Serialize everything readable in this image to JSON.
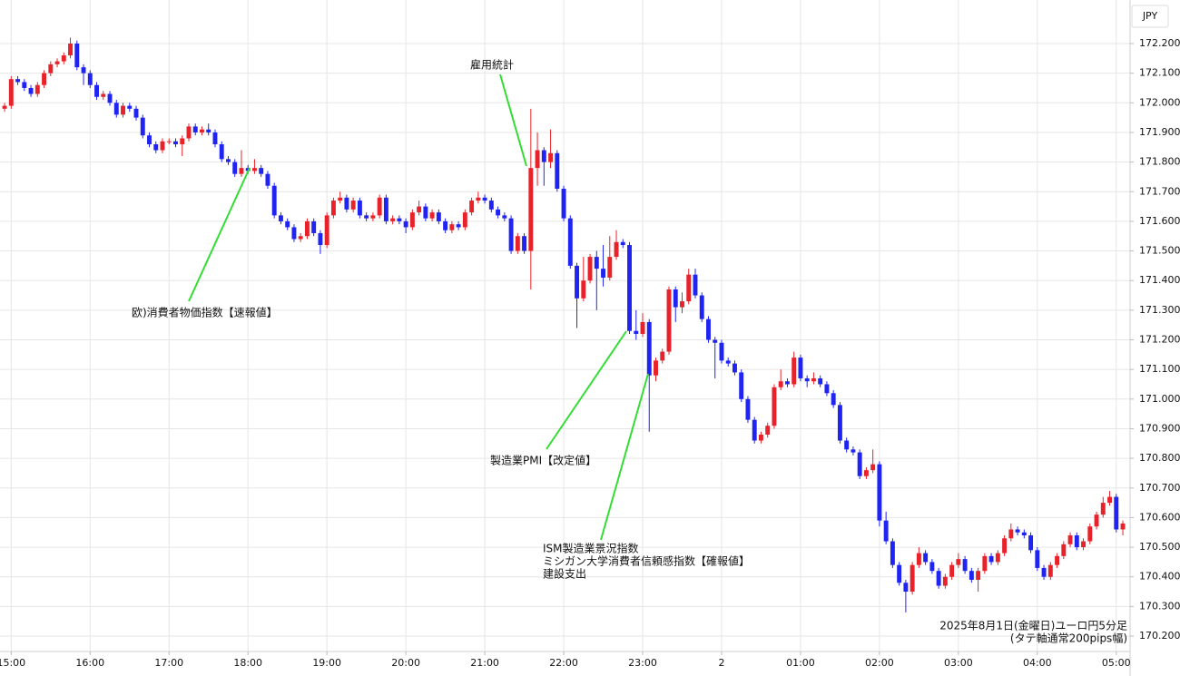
{
  "chart_data": {
    "type": "candlestick",
    "currency": "JPY",
    "up_color": "#e8222b",
    "down_color": "#1f24f2",
    "annotation_color": "#33dd33",
    "grid": true,
    "annotations": [
      {
        "lines": [
          "欧)消費者物価指数【速報値】"
        ]
      },
      {
        "lines": [
          "雇用統計"
        ]
      },
      {
        "lines": [
          "製造業PMI【改定値】"
        ]
      },
      {
        "lines": [
          "ISM製造業景況指数",
          "ミシガン大学消費者信頼感指数【確報値】",
          "建設支出"
        ]
      }
    ],
    "note": [
      "2025年8月1日(金曜日)ユーロ円5分足",
      "(タテ軸通常200pips幅)"
    ],
    "xlim": [
      -0.7,
      171.1
    ],
    "xticks": [
      {
        "value": 1,
        "label": "15:00"
      },
      {
        "value": 13,
        "label": "16:00"
      },
      {
        "value": 25,
        "label": "17:00"
      },
      {
        "value": 37,
        "label": "18:00"
      },
      {
        "value": 49,
        "label": "19:00"
      },
      {
        "value": 61,
        "label": "20:00"
      },
      {
        "value": 73,
        "label": "21:00"
      },
      {
        "value": 85,
        "label": "22:00"
      },
      {
        "value": 97,
        "label": "23:00"
      },
      {
        "value": 109,
        "label": "2"
      },
      {
        "value": 121,
        "label": "01:00"
      },
      {
        "value": 133,
        "label": "02:00"
      },
      {
        "value": 145,
        "label": "03:00"
      },
      {
        "value": 157,
        "label": "04:00"
      },
      {
        "value": 169,
        "label": "05:00"
      }
    ],
    "ylim": [
      170.148,
      172.347
    ],
    "yticks": [
      {
        "value": 170.2,
        "label": "170.200"
      },
      {
        "value": 170.3,
        "label": "170.300"
      },
      {
        "value": 170.4,
        "label": "170.400"
      },
      {
        "value": 170.5,
        "label": "170.500"
      },
      {
        "value": 170.6,
        "label": "170.600"
      },
      {
        "value": 170.7,
        "label": "170.700"
      },
      {
        "value": 170.8,
        "label": "170.800"
      },
      {
        "value": 170.9,
        "label": "170.900"
      },
      {
        "value": 171.0,
        "label": "171.000"
      },
      {
        "value": 171.1,
        "label": "171.100"
      },
      {
        "value": 171.2,
        "label": "171.200"
      },
      {
        "value": 171.3,
        "label": "171.300"
      },
      {
        "value": 171.4,
        "label": "171.400"
      },
      {
        "value": 171.5,
        "label": "171.500"
      },
      {
        "value": 171.6,
        "label": "171.600"
      },
      {
        "value": 171.7,
        "label": "171.700"
      },
      {
        "value": 171.8,
        "label": "171.800"
      },
      {
        "value": 171.9,
        "label": "171.900"
      },
      {
        "value": 172.0,
        "label": "172.000"
      },
      {
        "value": 172.1,
        "label": "172.100"
      },
      {
        "value": 172.2,
        "label": "172.200"
      }
    ],
    "open": [
      171.98,
      171.99,
      172.08,
      172.07,
      172.05,
      172.03,
      172.06,
      172.1,
      172.13,
      172.14,
      172.16,
      172.2,
      172.12,
      172.1,
      172.06,
      172.02,
      172.03,
      172.0,
      171.96,
      171.99,
      171.98,
      171.95,
      171.89,
      171.86,
      171.84,
      171.87,
      171.87,
      171.86,
      171.88,
      171.92,
      171.9,
      171.91,
      171.9,
      171.86,
      171.81,
      171.8,
      171.76,
      171.78,
      171.77,
      171.78,
      171.76,
      171.72,
      171.62,
      171.6,
      171.58,
      171.54,
      171.55,
      171.6,
      171.56,
      171.52,
      171.62,
      171.67,
      171.68,
      171.64,
      171.67,
      171.62,
      171.61,
      171.62,
      171.68,
      171.6,
      171.61,
      171.6,
      171.58,
      171.63,
      171.65,
      171.61,
      171.63,
      171.6,
      171.57,
      171.59,
      171.58,
      171.63,
      171.67,
      171.68,
      171.67,
      171.64,
      171.62,
      171.61,
      171.5,
      171.55,
      171.5,
      171.78,
      171.84,
      171.8,
      171.83,
      171.71,
      171.61,
      171.45,
      171.34,
      171.4,
      171.48,
      171.44,
      171.41,
      171.48,
      171.53,
      171.52,
      171.23,
      171.22,
      171.26,
      171.08,
      171.13,
      171.16,
      171.37,
      171.31,
      171.33,
      171.42,
      171.35,
      171.27,
      171.2,
      171.19,
      171.13,
      171.12,
      171.09,
      171.0,
      170.93,
      170.86,
      170.88,
      170.91,
      171.04,
      171.06,
      171.05,
      171.14,
      171.07,
      171.06,
      171.07,
      171.05,
      171.02,
      170.98,
      170.86,
      170.83,
      170.82,
      170.74,
      170.76,
      170.78,
      170.59,
      170.52,
      170.44,
      170.38,
      170.35,
      170.44,
      170.48,
      170.45,
      170.42,
      170.37,
      170.4,
      170.44,
      170.46,
      170.42,
      170.39,
      170.42,
      170.47,
      170.45,
      170.48,
      170.53,
      170.56,
      170.55,
      170.54,
      170.49,
      170.43,
      170.4,
      170.44,
      170.47,
      170.51,
      170.54,
      170.5,
      170.52,
      170.57,
      170.61,
      170.65,
      170.67,
      170.56
    ],
    "high": [
      172.0,
      172.09,
      172.09,
      172.08,
      172.06,
      172.07,
      172.11,
      172.14,
      172.15,
      172.17,
      172.22,
      172.21,
      172.13,
      172.11,
      172.07,
      172.04,
      172.04,
      172.01,
      172.0,
      172.0,
      171.99,
      171.96,
      171.9,
      171.87,
      171.88,
      171.88,
      171.88,
      171.89,
      171.93,
      171.93,
      171.92,
      171.93,
      171.91,
      171.87,
      171.82,
      171.81,
      171.84,
      171.79,
      171.81,
      171.79,
      171.77,
      171.73,
      171.63,
      171.61,
      171.59,
      171.56,
      171.61,
      171.61,
      171.57,
      171.63,
      171.68,
      171.7,
      171.69,
      171.68,
      171.68,
      171.63,
      171.63,
      171.69,
      171.69,
      171.62,
      171.62,
      171.61,
      171.64,
      171.67,
      171.66,
      171.64,
      171.64,
      171.61,
      171.6,
      171.6,
      171.64,
      171.68,
      171.7,
      171.69,
      171.68,
      171.65,
      171.63,
      171.62,
      171.56,
      171.56,
      171.98,
      171.9,
      171.85,
      171.91,
      171.84,
      171.72,
      171.62,
      171.46,
      171.48,
      171.49,
      171.5,
      171.52,
      171.55,
      171.57,
      171.54,
      171.53,
      171.3,
      171.29,
      171.27,
      171.14,
      171.17,
      171.38,
      171.38,
      171.36,
      171.44,
      171.44,
      171.36,
      171.28,
      171.21,
      171.2,
      171.14,
      171.13,
      171.1,
      171.01,
      170.94,
      170.89,
      170.92,
      171.05,
      171.1,
      171.07,
      171.16,
      171.15,
      171.08,
      171.09,
      171.08,
      171.06,
      171.03,
      170.99,
      170.87,
      170.84,
      170.83,
      170.77,
      170.83,
      170.79,
      170.62,
      170.53,
      170.45,
      170.39,
      170.45,
      170.5,
      170.49,
      170.46,
      170.43,
      170.41,
      170.45,
      170.48,
      170.47,
      170.43,
      170.43,
      170.48,
      170.48,
      170.49,
      170.54,
      170.58,
      170.57,
      170.56,
      170.55,
      170.5,
      170.44,
      170.45,
      170.48,
      170.52,
      170.55,
      170.55,
      170.53,
      170.58,
      170.62,
      170.67,
      170.69,
      170.68,
      170.59
    ],
    "low": [
      171.97,
      171.98,
      172.06,
      172.04,
      172.02,
      172.02,
      172.05,
      172.09,
      172.12,
      172.13,
      172.15,
      172.11,
      172.06,
      172.05,
      172.01,
      172.01,
      171.99,
      171.95,
      171.95,
      171.97,
      171.94,
      171.88,
      171.85,
      171.83,
      171.83,
      171.86,
      171.85,
      171.82,
      171.87,
      171.89,
      171.89,
      171.89,
      171.85,
      171.8,
      171.79,
      171.75,
      171.75,
      171.76,
      171.76,
      171.75,
      171.71,
      171.61,
      171.59,
      171.57,
      171.53,
      171.53,
      171.54,
      171.55,
      171.49,
      171.51,
      171.61,
      171.66,
      171.63,
      171.63,
      171.61,
      171.6,
      171.6,
      171.61,
      171.59,
      171.59,
      171.59,
      171.56,
      171.57,
      171.62,
      171.6,
      171.6,
      171.59,
      171.56,
      171.56,
      171.57,
      171.57,
      171.62,
      171.66,
      171.66,
      171.63,
      171.61,
      171.6,
      171.49,
      171.49,
      171.49,
      171.37,
      171.72,
      171.72,
      171.78,
      171.7,
      171.6,
      171.44,
      171.24,
      171.33,
      171.39,
      171.3,
      171.38,
      171.4,
      171.47,
      171.51,
      171.22,
      171.2,
      171.21,
      170.89,
      171.06,
      171.12,
      171.15,
      171.26,
      171.29,
      171.32,
      171.34,
      171.26,
      171.19,
      171.07,
      171.12,
      171.11,
      171.08,
      170.99,
      170.92,
      170.85,
      170.85,
      170.87,
      170.9,
      171.03,
      171.04,
      171.04,
      171.06,
      171.04,
      171.05,
      171.04,
      171.01,
      170.97,
      170.85,
      170.82,
      170.81,
      170.73,
      170.73,
      170.75,
      170.57,
      170.51,
      170.43,
      170.37,
      170.28,
      170.34,
      170.43,
      170.44,
      170.41,
      170.36,
      170.36,
      170.39,
      170.43,
      170.41,
      170.38,
      170.35,
      170.41,
      170.44,
      170.44,
      170.47,
      170.52,
      170.54,
      170.53,
      170.48,
      170.42,
      170.39,
      170.39,
      170.43,
      170.46,
      170.5,
      170.49,
      170.49,
      170.51,
      170.56,
      170.6,
      170.64,
      170.55,
      170.54
    ],
    "close": [
      171.99,
      172.08,
      172.07,
      172.05,
      172.03,
      172.06,
      172.1,
      172.13,
      172.14,
      172.16,
      172.2,
      172.12,
      172.1,
      172.06,
      172.02,
      172.03,
      172.0,
      171.96,
      171.99,
      171.98,
      171.95,
      171.89,
      171.86,
      171.84,
      171.87,
      171.87,
      171.86,
      171.88,
      171.92,
      171.9,
      171.91,
      171.9,
      171.86,
      171.81,
      171.8,
      171.76,
      171.78,
      171.77,
      171.78,
      171.76,
      171.72,
      171.62,
      171.6,
      171.58,
      171.54,
      171.55,
      171.6,
      171.56,
      171.52,
      171.62,
      171.67,
      171.68,
      171.64,
      171.67,
      171.62,
      171.61,
      171.62,
      171.68,
      171.6,
      171.61,
      171.6,
      171.58,
      171.63,
      171.65,
      171.61,
      171.63,
      171.6,
      171.57,
      171.59,
      171.58,
      171.63,
      171.67,
      171.68,
      171.67,
      171.64,
      171.62,
      171.61,
      171.5,
      171.55,
      171.5,
      171.78,
      171.84,
      171.8,
      171.83,
      171.71,
      171.61,
      171.45,
      171.34,
      171.4,
      171.48,
      171.44,
      171.41,
      171.48,
      171.53,
      171.52,
      171.23,
      171.22,
      171.26,
      171.08,
      171.13,
      171.16,
      171.37,
      171.31,
      171.33,
      171.42,
      171.35,
      171.27,
      171.2,
      171.19,
      171.13,
      171.12,
      171.09,
      171.0,
      170.93,
      170.86,
      170.88,
      170.91,
      171.04,
      171.06,
      171.05,
      171.14,
      171.07,
      171.06,
      171.07,
      171.05,
      171.02,
      170.98,
      170.86,
      170.83,
      170.82,
      170.74,
      170.76,
      170.78,
      170.59,
      170.52,
      170.44,
      170.38,
      170.35,
      170.44,
      170.48,
      170.45,
      170.42,
      170.37,
      170.4,
      170.44,
      170.46,
      170.42,
      170.39,
      170.42,
      170.47,
      170.45,
      170.48,
      170.53,
      170.56,
      170.55,
      170.54,
      170.49,
      170.43,
      170.4,
      170.44,
      170.47,
      170.51,
      170.54,
      170.5,
      170.52,
      170.57,
      170.61,
      170.65,
      170.67,
      170.56,
      170.58
    ]
  }
}
